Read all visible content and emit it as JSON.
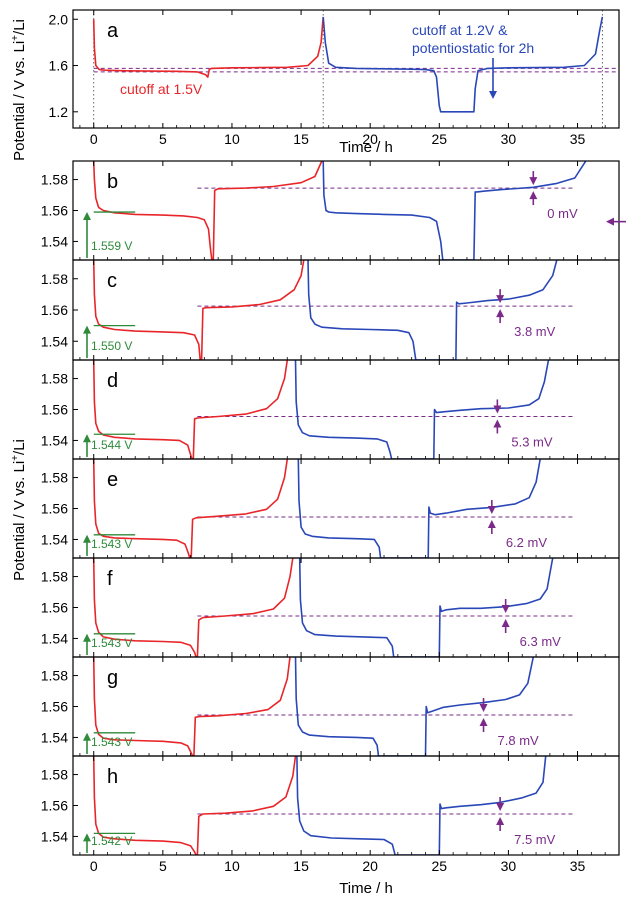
{
  "colors": {
    "red": "#e8262a",
    "blue": "#2a47b8",
    "purple": "#7b2a8a",
    "green": "#2f8a3a",
    "axis": "#000000",
    "vline": "#555555"
  },
  "xaxis": {
    "label": "Time / h",
    "range": [
      -1.5,
      38
    ],
    "ticks": [
      0,
      5,
      10,
      15,
      20,
      25,
      30,
      35
    ]
  },
  "ylabel_top": "Potential / V vs. Li",
  "ylabel_sup": "+",
  "ylabel_tail": "/Li",
  "ylabel_bottom": "Potential / V vs. Li",
  "chart_data": [
    {
      "type": "line",
      "panel": "a",
      "letter": "a",
      "xlim": [
        -1.5,
        38
      ],
      "ylim": [
        1.06,
        2.08
      ],
      "yticks": [
        1.2,
        1.6,
        2.0
      ],
      "ytick_labels": [
        "1.2",
        "1.6",
        "2.0"
      ],
      "annotations": [
        "cutoff at 1.5V",
        "cutoff at 1.2V &",
        "potentiostatic for 2h"
      ],
      "vlines": [
        0,
        16.6,
        36.8
      ],
      "hlines": [
        1.575,
        1.545
      ],
      "series": [
        {
          "color": "red",
          "x": [
            0,
            0.05,
            0.15,
            0.4,
            0.8,
            2,
            4,
            6,
            7.5,
            8.1,
            8.25,
            8.35,
            8.5,
            10,
            12,
            14,
            15.5,
            16.2,
            16.45,
            16.55,
            16.6
          ],
          "y": [
            2.0,
            1.75,
            1.6,
            1.565,
            1.56,
            1.555,
            1.552,
            1.55,
            1.545,
            1.52,
            1.5,
            1.565,
            1.575,
            1.58,
            1.582,
            1.585,
            1.6,
            1.68,
            1.8,
            1.95,
            2.02
          ]
        },
        {
          "color": "red",
          "x": [
            0.35,
            0.35
          ],
          "y": [
            1.5,
            1.5
          ]
        },
        {
          "color": "blue",
          "x": [
            16.6,
            16.75,
            17,
            17.5,
            19,
            21,
            23,
            24,
            24.6,
            24.8,
            25.0,
            25.1,
            27.5,
            27.6,
            27.8,
            28.5,
            30,
            32,
            34,
            35.5,
            36.3,
            36.6,
            36.8
          ],
          "y": [
            2.02,
            1.8,
            1.62,
            1.585,
            1.575,
            1.572,
            1.568,
            1.565,
            1.555,
            1.5,
            1.25,
            1.2,
            1.2,
            1.4,
            1.555,
            1.575,
            1.58,
            1.582,
            1.585,
            1.6,
            1.7,
            1.9,
            2.02
          ]
        }
      ]
    },
    {
      "type": "line",
      "panel": "b",
      "letter": "b",
      "xlim": [
        -1.5,
        38
      ],
      "ylim": [
        1.528,
        1.592
      ],
      "yticks": [
        1.54,
        1.56,
        1.58
      ],
      "ytick_labels": [
        "1.54",
        "1.56",
        "1.58"
      ],
      "ocv": "1.559 V",
      "ocv_value": 1.559,
      "overpotential": "0 mV",
      "hline": 1.5745,
      "arrow_x": 31.8,
      "series": [
        {
          "color": "red",
          "x": [
            0,
            0.05,
            0.15,
            0.35,
            0.7,
            1.5,
            3,
            5,
            6.5,
            7.5,
            8.0,
            8.3,
            8.45,
            8.55,
            8.65,
            8.75,
            9,
            11,
            13,
            15,
            16,
            16.5
          ],
          "y": [
            1.592,
            1.58,
            1.568,
            1.562,
            1.56,
            1.5585,
            1.5575,
            1.557,
            1.5565,
            1.5555,
            1.554,
            1.548,
            1.535,
            1.528,
            1.528,
            1.573,
            1.574,
            1.5745,
            1.5755,
            1.578,
            1.582,
            1.592
          ]
        },
        {
          "color": "blue",
          "x": [
            16.6,
            16.65,
            16.8,
            17,
            17.5,
            19,
            21,
            23,
            24.3,
            24.8,
            25.1,
            25.25,
            27.5,
            27.6,
            27.75,
            28.2,
            29.5,
            31.8,
            33.5,
            34.8,
            35.6
          ],
          "y": [
            1.592,
            1.57,
            1.56,
            1.559,
            1.5585,
            1.558,
            1.5575,
            1.557,
            1.5555,
            1.553,
            1.54,
            1.528,
            1.528,
            1.572,
            1.572,
            1.5725,
            1.5735,
            1.575,
            1.5775,
            1.581,
            1.592
          ]
        }
      ]
    },
    {
      "type": "line",
      "panel": "c",
      "letter": "c",
      "xlim": [
        -1.5,
        38
      ],
      "ylim": [
        1.528,
        1.592
      ],
      "yticks": [
        1.54,
        1.56,
        1.58
      ],
      "ytick_labels": [
        "1.54",
        "1.56",
        "1.58"
      ],
      "ocv": "1.550 V",
      "ocv_value": 1.55,
      "overpotential": "3.8 mV",
      "hline": 1.5625,
      "arrow_x": 29.4,
      "series": [
        {
          "color": "red",
          "x": [
            0,
            0.05,
            0.15,
            0.35,
            0.7,
            1.5,
            3,
            5,
            6.5,
            7.3,
            7.6,
            7.7,
            7.8,
            7.9,
            8.1,
            10,
            12,
            13.5,
            14.5,
            15,
            15.2
          ],
          "y": [
            1.592,
            1.57,
            1.556,
            1.551,
            1.549,
            1.5475,
            1.5465,
            1.546,
            1.5455,
            1.544,
            1.538,
            1.528,
            1.528,
            1.561,
            1.5615,
            1.562,
            1.5635,
            1.5665,
            1.573,
            1.582,
            1.592
          ]
        },
        {
          "color": "blue",
          "x": [
            15.5,
            15.55,
            15.7,
            16,
            16.5,
            18,
            20,
            22,
            22.8,
            23.1,
            23.3,
            23.4,
            26.2,
            26.25,
            26.4,
            27,
            28.5,
            30,
            31.5,
            32.5,
            33.2,
            33.5
          ],
          "y": [
            1.592,
            1.57,
            1.555,
            1.551,
            1.549,
            1.548,
            1.5475,
            1.547,
            1.5455,
            1.54,
            1.528,
            1.528,
            1.528,
            1.565,
            1.564,
            1.5645,
            1.566,
            1.567,
            1.5695,
            1.573,
            1.582,
            1.592
          ]
        }
      ]
    },
    {
      "type": "line",
      "panel": "d",
      "letter": "d",
      "xlim": [
        -1.5,
        38
      ],
      "ylim": [
        1.528,
        1.592
      ],
      "yticks": [
        1.54,
        1.56,
        1.58
      ],
      "ytick_labels": [
        "1.54",
        "1.56",
        "1.58"
      ],
      "ocv": "1.544 V",
      "ocv_value": 1.544,
      "overpotential": "5.3 mV",
      "hline": 1.5555,
      "arrow_x": 29.2,
      "series": [
        {
          "color": "red",
          "x": [
            0,
            0.05,
            0.15,
            0.35,
            0.7,
            1.5,
            3,
            5,
            6.2,
            6.8,
            7.0,
            7.1,
            7.2,
            7.3,
            7.5,
            9,
            11,
            12.5,
            13.3,
            13.8,
            14.0
          ],
          "y": [
            1.592,
            1.565,
            1.551,
            1.546,
            1.5435,
            1.542,
            1.541,
            1.5405,
            1.54,
            1.537,
            1.531,
            1.528,
            1.528,
            1.554,
            1.5545,
            1.5555,
            1.557,
            1.5605,
            1.567,
            1.58,
            1.592
          ]
        },
        {
          "color": "blue",
          "x": [
            14.6,
            14.65,
            14.8,
            15.1,
            15.6,
            17,
            19,
            20.5,
            21.2,
            21.45,
            21.55,
            24.6,
            24.65,
            24.8,
            25.3,
            26.5,
            28,
            30,
            31.5,
            32.2,
            32.6,
            32.9
          ],
          "y": [
            1.592,
            1.565,
            1.55,
            1.545,
            1.543,
            1.542,
            1.5415,
            1.541,
            1.539,
            1.532,
            1.528,
            1.528,
            1.56,
            1.558,
            1.5585,
            1.5595,
            1.5605,
            1.561,
            1.563,
            1.567,
            1.578,
            1.592
          ]
        }
      ]
    },
    {
      "type": "line",
      "panel": "e",
      "letter": "e",
      "xlim": [
        -1.5,
        38
      ],
      "ylim": [
        1.528,
        1.592
      ],
      "yticks": [
        1.54,
        1.56,
        1.58
      ],
      "ytick_labels": [
        "1.54",
        "1.56",
        "1.58"
      ],
      "ocv": "1.543 V",
      "ocv_value": 1.543,
      "overpotential": "6.2 mV",
      "hline": 1.5545,
      "arrow_x": 28.8,
      "series": [
        {
          "color": "red",
          "x": [
            0,
            0.05,
            0.15,
            0.35,
            0.7,
            1.5,
            3,
            5,
            6.0,
            6.6,
            6.85,
            6.95,
            7.05,
            7.15,
            7.4,
            9,
            11,
            12.5,
            13.3,
            13.8,
            14.0
          ],
          "y": [
            1.592,
            1.565,
            1.55,
            1.544,
            1.542,
            1.541,
            1.5405,
            1.54,
            1.5395,
            1.537,
            1.531,
            1.528,
            1.528,
            1.553,
            1.554,
            1.555,
            1.5565,
            1.5595,
            1.566,
            1.58,
            1.592
          ]
        },
        {
          "color": "blue",
          "x": [
            14.8,
            14.85,
            15.0,
            15.3,
            15.8,
            17,
            19,
            20.3,
            20.65,
            20.75,
            24.2,
            24.25,
            24.35,
            24.7,
            25.5,
            27,
            28.8,
            30.5,
            31.5,
            32.0,
            32.3
          ],
          "y": [
            1.592,
            1.565,
            1.548,
            1.5435,
            1.542,
            1.541,
            1.5405,
            1.54,
            1.535,
            1.528,
            1.528,
            1.561,
            1.557,
            1.556,
            1.557,
            1.5595,
            1.5607,
            1.563,
            1.567,
            1.577,
            1.592
          ]
        }
      ]
    },
    {
      "type": "line",
      "panel": "f",
      "letter": "f",
      "xlim": [
        -1.5,
        38
      ],
      "ylim": [
        1.528,
        1.592
      ],
      "yticks": [
        1.54,
        1.56,
        1.58
      ],
      "ytick_labels": [
        "1.54",
        "1.56",
        "1.58"
      ],
      "ocv": "1.543 V",
      "ocv_value": 1.543,
      "overpotential": "6.3 mV",
      "hline": 1.5545,
      "arrow_x": 29.8,
      "series": [
        {
          "color": "red",
          "x": [
            0,
            0.05,
            0.15,
            0.35,
            0.7,
            1.5,
            3,
            5,
            6.3,
            7.0,
            7.3,
            7.4,
            7.5,
            7.6,
            7.9,
            9.5,
            11.5,
            13,
            13.8,
            14.2,
            14.4
          ],
          "y": [
            1.592,
            1.565,
            1.55,
            1.544,
            1.541,
            1.5395,
            1.5385,
            1.538,
            1.5375,
            1.5355,
            1.531,
            1.528,
            1.528,
            1.552,
            1.5535,
            1.5545,
            1.556,
            1.559,
            1.566,
            1.58,
            1.592
          ]
        },
        {
          "color": "blue",
          "x": [
            14.9,
            14.95,
            15.1,
            15.4,
            16,
            17.5,
            19.5,
            21.2,
            21.6,
            21.7,
            25.0,
            25.05,
            25.15,
            25.5,
            26.5,
            28,
            29.8,
            31.3,
            32.3,
            32.8,
            33.2
          ],
          "y": [
            1.592,
            1.565,
            1.55,
            1.545,
            1.5425,
            1.5415,
            1.541,
            1.5405,
            1.535,
            1.528,
            1.528,
            1.561,
            1.5575,
            1.5585,
            1.5595,
            1.5595,
            1.5605,
            1.5625,
            1.5655,
            1.572,
            1.592
          ]
        }
      ]
    },
    {
      "type": "line",
      "panel": "g",
      "letter": "g",
      "xlim": [
        -1.5,
        38
      ],
      "ylim": [
        1.528,
        1.592
      ],
      "yticks": [
        1.54,
        1.56,
        1.58
      ],
      "ytick_labels": [
        "1.54",
        "1.56",
        "1.58"
      ],
      "ocv": "1.543 V",
      "ocv_value": 1.543,
      "overpotential": "7.8 mV",
      "hline": 1.5545,
      "arrow_x": 28.2,
      "series": [
        {
          "color": "red",
          "x": [
            0,
            0.05,
            0.15,
            0.35,
            0.7,
            1.5,
            3,
            5,
            6.3,
            6.8,
            7.05,
            7.15,
            7.25,
            7.35,
            7.6,
            9,
            11,
            12.6,
            13.5,
            14.0,
            14.2
          ],
          "y": [
            1.592,
            1.565,
            1.548,
            1.542,
            1.5395,
            1.5385,
            1.538,
            1.5375,
            1.5365,
            1.5345,
            1.53,
            1.528,
            1.528,
            1.553,
            1.5535,
            1.554,
            1.5555,
            1.558,
            1.564,
            1.578,
            1.592
          ]
        },
        {
          "color": "blue",
          "x": [
            14.6,
            14.65,
            14.8,
            15.1,
            15.6,
            17,
            19,
            20.2,
            20.5,
            20.6,
            24.0,
            24.05,
            24.15,
            24.5,
            25.3,
            26.5,
            28.2,
            29.8,
            30.8,
            31.4,
            31.8
          ],
          "y": [
            1.592,
            1.565,
            1.548,
            1.5435,
            1.5415,
            1.5405,
            1.54,
            1.5395,
            1.535,
            1.528,
            1.528,
            1.56,
            1.556,
            1.557,
            1.5595,
            1.561,
            1.5625,
            1.5645,
            1.5675,
            1.575,
            1.592
          ]
        }
      ]
    },
    {
      "type": "line",
      "panel": "h",
      "letter": "h",
      "xlim": [
        -1.5,
        38
      ],
      "ylim": [
        1.528,
        1.592
      ],
      "yticks": [
        1.54,
        1.56,
        1.58
      ],
      "ytick_labels": [
        "1.54",
        "1.56",
        "1.58"
      ],
      "ocv": "1.542 V",
      "ocv_value": 1.542,
      "overpotential": "7.5 mV",
      "hline": 1.5545,
      "arrow_x": 29.4,
      "series": [
        {
          "color": "red",
          "x": [
            0,
            0.05,
            0.15,
            0.35,
            0.7,
            1.5,
            3,
            5,
            6.3,
            7.0,
            7.3,
            7.4,
            7.5,
            7.6,
            7.9,
            9.5,
            11.5,
            13,
            13.9,
            14.4,
            14.6
          ],
          "y": [
            1.592,
            1.565,
            1.548,
            1.542,
            1.5395,
            1.5385,
            1.5375,
            1.537,
            1.536,
            1.534,
            1.53,
            1.528,
            1.528,
            1.553,
            1.5545,
            1.555,
            1.5565,
            1.5595,
            1.5655,
            1.579,
            1.592
          ]
        },
        {
          "color": "blue",
          "x": [
            14.7,
            14.75,
            14.9,
            15.2,
            15.7,
            17.2,
            19.2,
            21.0,
            21.6,
            21.8,
            25.0,
            25.05,
            25.15,
            25.5,
            26.5,
            28,
            29.4,
            31,
            32.0,
            32.5,
            32.7
          ],
          "y": [
            1.592,
            1.565,
            1.55,
            1.5435,
            1.5405,
            1.539,
            1.5385,
            1.538,
            1.535,
            1.528,
            1.528,
            1.561,
            1.558,
            1.5585,
            1.5595,
            1.5605,
            1.562,
            1.565,
            1.568,
            1.575,
            1.592
          ]
        }
      ]
    }
  ]
}
